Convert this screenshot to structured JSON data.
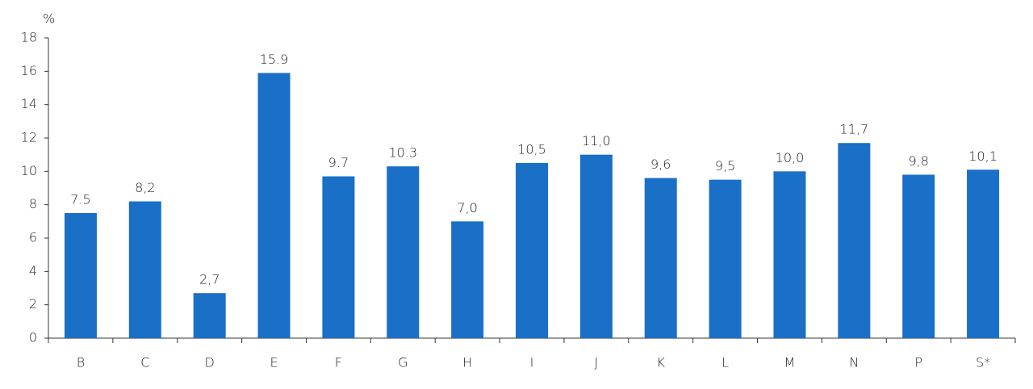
{
  "chart_data": {
    "type": "bar",
    "y_label": "%",
    "categories": [
      "B",
      "C",
      "D",
      "E",
      "F",
      "G",
      "H",
      "I",
      "J",
      "K",
      "L",
      "M",
      "N",
      "P",
      "S*"
    ],
    "values": [
      7.5,
      8.2,
      2.7,
      15.9,
      9.7,
      10.3,
      7.0,
      10.5,
      11.0,
      9.6,
      9.5,
      10.0,
      11.7,
      9.8,
      10.1
    ],
    "value_labels": [
      "7.5",
      "8,2",
      "2,7",
      "15.9",
      "9.7",
      "10.3",
      "7,0",
      "10,5",
      "11,0",
      "9,6",
      "9,5",
      "10,0",
      "11,7",
      "9,8",
      "10,1"
    ],
    "color": "#1a6fc6",
    "ylim": [
      0,
      18
    ],
    "yticks": [
      0,
      2,
      4,
      6,
      8,
      10,
      12,
      14,
      16,
      18
    ],
    "grid": false
  }
}
